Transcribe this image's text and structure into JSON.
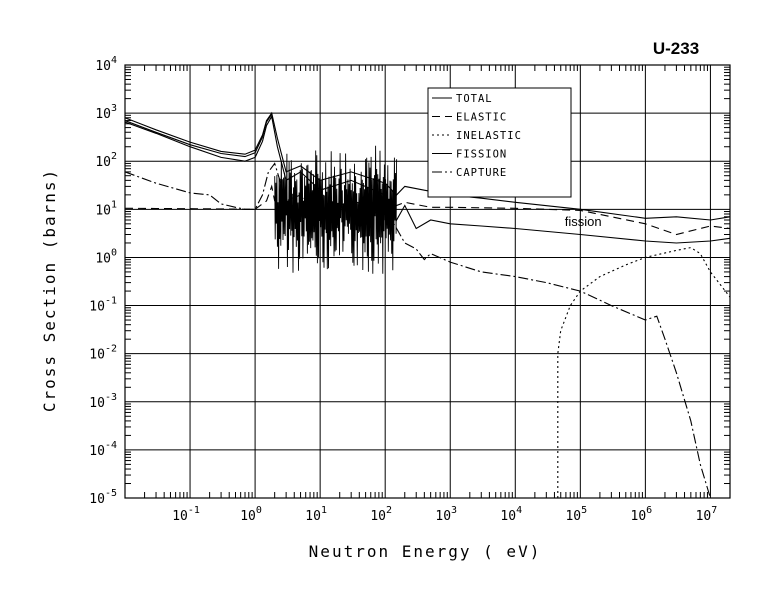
{
  "chart_data": {
    "type": "line",
    "title": "U-233",
    "xlabel": "Neutron Energy ( eV)",
    "ylabel": "Cross Section (barns)",
    "xscale": "log",
    "yscale": "log",
    "xlim": [
      0.01,
      20000000
    ],
    "ylim": [
      1e-05,
      10000
    ],
    "grid": true,
    "legend_position": "top-right",
    "x_ticks": [
      {
        "base": "10",
        "exp": "-1",
        "value": 0.1
      },
      {
        "base": "10",
        "exp": "0",
        "value": 1
      },
      {
        "base": "10",
        "exp": "1",
        "value": 10
      },
      {
        "base": "10",
        "exp": "2",
        "value": 100
      },
      {
        "base": "10",
        "exp": "3",
        "value": 1000
      },
      {
        "base": "10",
        "exp": "4",
        "value": 10000
      },
      {
        "base": "10",
        "exp": "5",
        "value": 100000
      },
      {
        "base": "10",
        "exp": "6",
        "value": 1000000
      },
      {
        "base": "10",
        "exp": "7",
        "value": 10000000
      }
    ],
    "y_ticks": [
      {
        "base": "10",
        "exp": "-5",
        "value": 1e-05
      },
      {
        "base": "10",
        "exp": "-4",
        "value": 0.0001
      },
      {
        "base": "10",
        "exp": "-3",
        "value": 0.001
      },
      {
        "base": "10",
        "exp": "-2",
        "value": 0.01
      },
      {
        "base": "10",
        "exp": "-1",
        "value": 0.1
      },
      {
        "base": "10",
        "exp": "0",
        "value": 1
      },
      {
        "base": "10",
        "exp": "1",
        "value": 10
      },
      {
        "base": "10",
        "exp": "2",
        "value": 100
      },
      {
        "base": "10",
        "exp": "3",
        "value": 1000
      },
      {
        "base": "10",
        "exp": "4",
        "value": 10000
      }
    ],
    "annotation": {
      "text": "fission",
      "x": 50000,
      "y": 5
    },
    "series": [
      {
        "name": "TOTAL",
        "dash": "none",
        "x": [
          0.01,
          0.03,
          0.1,
          0.3,
          0.7,
          1,
          1.3,
          1.5,
          1.8,
          2.2,
          3,
          5,
          10,
          30,
          100,
          150,
          200,
          400,
          1000,
          3000,
          10000,
          100000,
          1000000,
          3000000,
          10000000,
          20000000
        ],
        "y": [
          800,
          450,
          250,
          160,
          140,
          170,
          350,
          700,
          1000,
          300,
          60,
          80,
          40,
          60,
          35,
          20,
          30,
          25,
          20,
          17,
          14,
          10,
          6.5,
          7,
          6,
          7
        ]
      },
      {
        "name": "TOTAL",
        "dash": "none",
        "x": [
          0.01,
          0.03,
          0.1,
          0.3,
          0.7,
          1,
          1.3,
          1.5,
          1.8
        ],
        "y": [
          700,
          400,
          220,
          145,
          125,
          150,
          320,
          650,
          950
        ]
      },
      {
        "name": "ELASTIC",
        "dash": "8 5",
        "x": [
          0.01,
          0.03,
          0.1,
          0.3,
          0.5,
          0.7,
          1,
          1.5,
          1.8,
          2,
          3,
          5,
          10,
          30,
          100,
          150,
          200,
          500,
          1000,
          10000,
          100000,
          1000000,
          3000000,
          10000000,
          20000000
        ],
        "y": [
          10.5,
          10.4,
          10.3,
          10.2,
          10.1,
          10,
          10,
          15,
          30,
          15,
          8,
          12,
          6,
          10,
          8,
          12,
          14,
          11,
          11,
          10.5,
          9.5,
          5,
          3,
          4.5,
          4
        ]
      },
      {
        "name": "INELASTIC",
        "dash": "2 3",
        "x": [
          45000,
          45001,
          50000,
          70000,
          100000,
          200000,
          500000,
          1000000,
          3000000,
          5000000,
          7000000,
          10000000,
          20000000
        ],
        "y": [
          1e-05,
          0.01,
          0.03,
          0.1,
          0.2,
          0.4,
          0.7,
          1,
          1.4,
          1.6,
          1.2,
          0.5,
          0.15
        ]
      },
      {
        "name": "FISSION",
        "dash": "none",
        "x": [
          0.01,
          0.03,
          0.1,
          0.3,
          0.7,
          1,
          1.3,
          1.5,
          1.8,
          2.2,
          3,
          5,
          10,
          30,
          100,
          150,
          200,
          300,
          500,
          1000,
          3000,
          10000,
          100000,
          1000000,
          3000000,
          10000000,
          20000000
        ],
        "y": [
          650,
          380,
          200,
          120,
          100,
          120,
          260,
          550,
          850,
          200,
          40,
          60,
          25,
          40,
          20,
          6,
          12,
          4,
          6,
          5,
          4.5,
          4,
          3,
          2.2,
          2,
          2.2,
          2.5
        ]
      },
      {
        "name": "CAPTURE",
        "dash": "10 3 2 3",
        "x": [
          0.01,
          0.03,
          0.1,
          0.2,
          0.3,
          0.5,
          0.7,
          1,
          1.3,
          1.6,
          2,
          3,
          5,
          10,
          30,
          100,
          150,
          200,
          300,
          400,
          500,
          1000,
          3000,
          10000,
          30000,
          100000,
          300000,
          1000000,
          1500000,
          2000000,
          3000000,
          5000000,
          7000000,
          10000000
        ],
        "y": [
          60,
          35,
          22,
          20,
          13,
          11,
          10,
          10,
          20,
          60,
          90,
          15,
          20,
          8,
          15,
          10,
          4,
          2,
          1.5,
          0.9,
          1.2,
          0.8,
          0.5,
          0.4,
          0.3,
          0.2,
          0.1,
          0.05,
          0.06,
          0.02,
          0.004,
          0.0004,
          5e-05,
          1e-05
        ]
      }
    ]
  }
}
